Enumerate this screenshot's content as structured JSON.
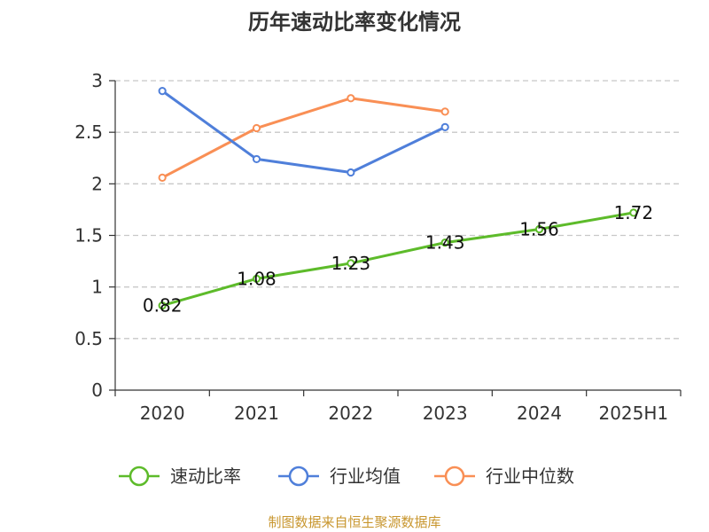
{
  "chart_data": {
    "type": "line",
    "title": "历年速动比率变化情况",
    "categories": [
      "2020",
      "2021",
      "2022",
      "2023",
      "2024",
      "2025H1"
    ],
    "ylim": [
      0,
      3
    ],
    "yticks": [
      "0",
      "0.5",
      "1",
      "1.5",
      "2",
      "2.5",
      "3"
    ],
    "grid": true,
    "legend_position": "bottom",
    "series": [
      {
        "name": "速动比率",
        "color": "#5dbb2a",
        "values": [
          0.82,
          1.08,
          1.23,
          1.43,
          1.56,
          1.72
        ],
        "labels": [
          "0.82",
          "1.08",
          "1.23",
          "1.43",
          "1.56",
          "1.72"
        ]
      },
      {
        "name": "行业均值",
        "color": "#4f7fda",
        "values": [
          2.9,
          2.24,
          2.11,
          2.55,
          null,
          null
        ]
      },
      {
        "name": "行业中位数",
        "color": "#f98f55",
        "values": [
          2.06,
          2.54,
          2.83,
          2.7,
          null,
          null
        ]
      }
    ],
    "source": "制图数据来自恒生聚源数据库"
  }
}
